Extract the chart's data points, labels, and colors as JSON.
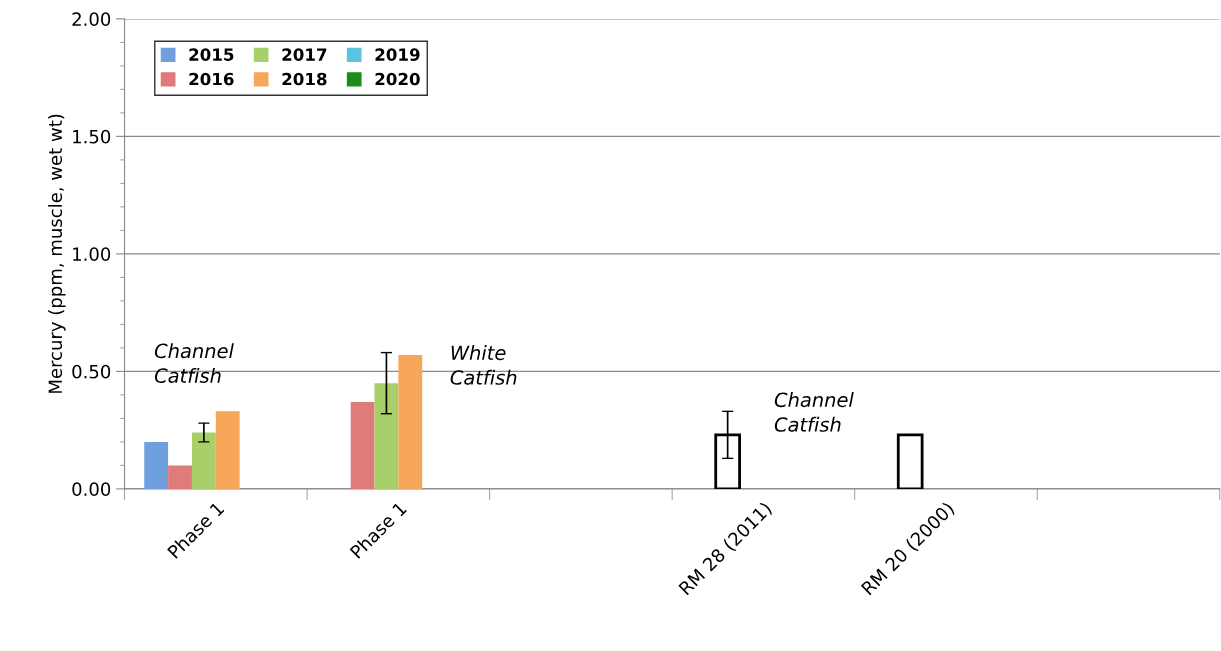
{
  "chart_data": {
    "type": "bar",
    "ylabel": "Mercury (ppm, muscle, wet wt)",
    "categories": [
      "Phase 1",
      "Phase 1",
      null,
      "RM 28 (2011)",
      "RM 20 (2000)",
      null
    ],
    "series": [
      {
        "name": "2015",
        "color": "#6f9fdc",
        "values": [
          0.2,
          null,
          null,
          null,
          null,
          null
        ]
      },
      {
        "name": "2016",
        "color": "#e07b7b",
        "colors": [
          "#e07b7b",
          "#e07b7b",
          "#e07b7b",
          "#ffffff",
          "#ffffff",
          "#e07b7b"
        ],
        "values": [
          0.1,
          0.37,
          null,
          0.23,
          0.23,
          null
        ],
        "errors": [
          null,
          null,
          null,
          [
            0.13,
            0.33
          ],
          null,
          null
        ]
      },
      {
        "name": "2017",
        "color": "#a8cf6a",
        "values": [
          0.24,
          0.45,
          null,
          null,
          null,
          null
        ],
        "errors": [
          [
            0.2,
            0.28
          ],
          [
            0.32,
            0.58
          ],
          null,
          null,
          null,
          null
        ]
      },
      {
        "name": "2018",
        "color": "#f8a65a",
        "values": [
          0.33,
          0.57,
          null,
          null,
          null,
          null
        ]
      },
      {
        "name": "2019",
        "color": "#5bc4e0",
        "values": [
          null,
          null,
          null,
          null,
          null,
          null
        ]
      },
      {
        "name": "2020",
        "color": "#1a8c1a",
        "values": [
          null,
          null,
          null,
          null,
          null,
          null
        ]
      }
    ],
    "ylim": [
      0,
      2
    ],
    "yticks": [
      {
        "value": 0,
        "label": "0.00"
      },
      {
        "value": 0.1,
        "label": null
      },
      {
        "value": 0.2,
        "label": null
      },
      {
        "value": 0.3,
        "label": null
      },
      {
        "value": 0.4,
        "label": null
      },
      {
        "value": 0.5,
        "label": "0.50"
      },
      {
        "value": 0.6,
        "label": null
      },
      {
        "value": 0.7,
        "label": null
      },
      {
        "value": 0.8,
        "label": null
      },
      {
        "value": 0.9,
        "label": null
      },
      {
        "value": 1.0,
        "label": "1.00"
      },
      {
        "value": 1.1,
        "label": null
      },
      {
        "value": 1.2,
        "label": null
      },
      {
        "value": 1.3,
        "label": null
      },
      {
        "value": 1.4,
        "label": null
      },
      {
        "value": 1.5,
        "label": "1.50"
      },
      {
        "value": 1.6,
        "label": null
      },
      {
        "value": 1.7,
        "label": null
      },
      {
        "value": 1.8,
        "label": null
      },
      {
        "value": 1.9,
        "label": null
      },
      {
        "value": 2.0,
        "label": "2.00"
      }
    ],
    "annotations": [
      "Channel\nCatfish",
      "White\nCatfish",
      "Channel\nCatfish"
    ],
    "grid": "y",
    "legend": "top left"
  }
}
